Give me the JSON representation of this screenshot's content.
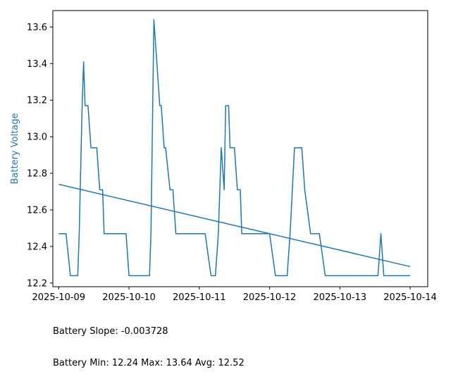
{
  "chart_data": {
    "type": "line",
    "title": "",
    "xlabel": "",
    "ylabel": "Battery Voltage",
    "xlim": [
      "2025-10-08T22:00",
      "2025-10-14T06:00"
    ],
    "ylim": [
      12.18,
      13.69
    ],
    "x_ticks": [
      "2025-10-09",
      "2025-10-10",
      "2025-10-11",
      "2025-10-12",
      "2025-10-13",
      "2025-10-14"
    ],
    "y_ticks": [
      "12.2",
      "12.4",
      "12.6",
      "12.8",
      "13.0",
      "13.2",
      "13.4",
      "13.6"
    ],
    "grid": false,
    "series": [
      {
        "type": "line",
        "x": [
          "2025-10-09T00:00",
          "2025-10-09T02:30",
          "2025-10-09T04:00",
          "2025-10-09T06:00",
          "2025-10-09T06:30",
          "2025-10-09T07:00",
          "2025-10-09T08:00",
          "2025-10-09T08:30",
          "2025-10-09T09:00",
          "2025-10-09T10:00",
          "2025-10-09T11:00",
          "2025-10-09T13:00",
          "2025-10-09T14:00",
          "2025-10-09T15:00",
          "2025-10-09T15:30",
          "2025-10-09T17:00",
          "2025-10-09T18:00",
          "2025-10-09T20:00",
          "2025-10-09T23:00",
          "2025-10-10T00:00",
          "2025-10-10T03:00",
          "2025-10-10T07:00",
          "2025-10-10T07:30",
          "2025-10-10T08:30",
          "2025-10-10T09:30",
          "2025-10-10T10:30",
          "2025-10-10T11:00",
          "2025-10-10T12:00",
          "2025-10-10T12:30",
          "2025-10-10T14:00",
          "2025-10-10T15:00",
          "2025-10-10T16:00",
          "2025-10-10T17:00",
          "2025-10-10T19:00",
          "2025-10-10T22:00",
          "2025-10-11T02:00",
          "2025-10-11T04:00",
          "2025-10-11T05:30",
          "2025-10-11T06:30",
          "2025-10-11T07:30",
          "2025-10-11T08:30",
          "2025-10-11T09:00",
          "2025-10-11T10:00",
          "2025-10-11T10:30",
          "2025-10-11T12:00",
          "2025-10-11T13:00",
          "2025-10-11T14:00",
          "2025-10-11T14:30",
          "2025-10-11T15:30",
          "2025-10-11T17:00",
          "2025-10-11T20:00",
          "2025-10-12T00:00",
          "2025-10-12T02:00",
          "2025-10-12T04:00",
          "2025-10-12T06:00",
          "2025-10-12T07:00",
          "2025-10-12T08:30",
          "2025-10-12T10:00",
          "2025-10-12T11:00",
          "2025-10-12T12:00",
          "2025-10-12T14:00",
          "2025-10-12T15:00",
          "2025-10-12T17:00",
          "2025-10-12T19:00",
          "2025-10-12T20:00",
          "2025-10-12T22:00",
          "2025-10-13T04:00",
          "2025-10-13T10:00",
          "2025-10-13T13:00",
          "2025-10-13T14:00",
          "2025-10-13T15:00",
          "2025-10-13T18:00",
          "2025-10-13T22:00",
          "2025-10-14T00:00"
        ],
        "y": [
          12.47,
          12.47,
          12.24,
          12.24,
          12.24,
          12.47,
          13.17,
          13.41,
          13.17,
          13.17,
          12.94,
          12.94,
          12.71,
          12.71,
          12.47,
          12.47,
          12.47,
          12.47,
          12.47,
          12.24,
          12.24,
          12.24,
          12.47,
          13.64,
          13.41,
          13.17,
          13.17,
          12.94,
          12.94,
          12.71,
          12.71,
          12.47,
          12.47,
          12.47,
          12.47,
          12.47,
          12.24,
          12.24,
          12.47,
          12.94,
          12.71,
          13.17,
          13.17,
          12.94,
          12.94,
          12.71,
          12.71,
          12.47,
          12.47,
          12.47,
          12.47,
          12.47,
          12.24,
          12.24,
          12.24,
          12.47,
          12.94,
          12.94,
          12.94,
          12.71,
          12.47,
          12.47,
          12.47,
          12.24,
          12.24,
          12.24,
          12.24,
          12.24,
          12.24,
          12.47,
          12.24,
          12.24,
          12.24,
          12.24
        ]
      },
      {
        "type": "trend",
        "x": [
          "2025-10-09T00:00",
          "2025-10-14T00:00"
        ],
        "y": [
          12.74,
          12.29
        ]
      }
    ],
    "annotations": [
      "Battery Slope: -0.003728",
      "Battery Min: 12.24 Max: 13.64 Avg: 12.52"
    ],
    "colors": {
      "line": "#1f77b4",
      "ylabel": "#1f77b4",
      "axis": "#000000"
    }
  }
}
